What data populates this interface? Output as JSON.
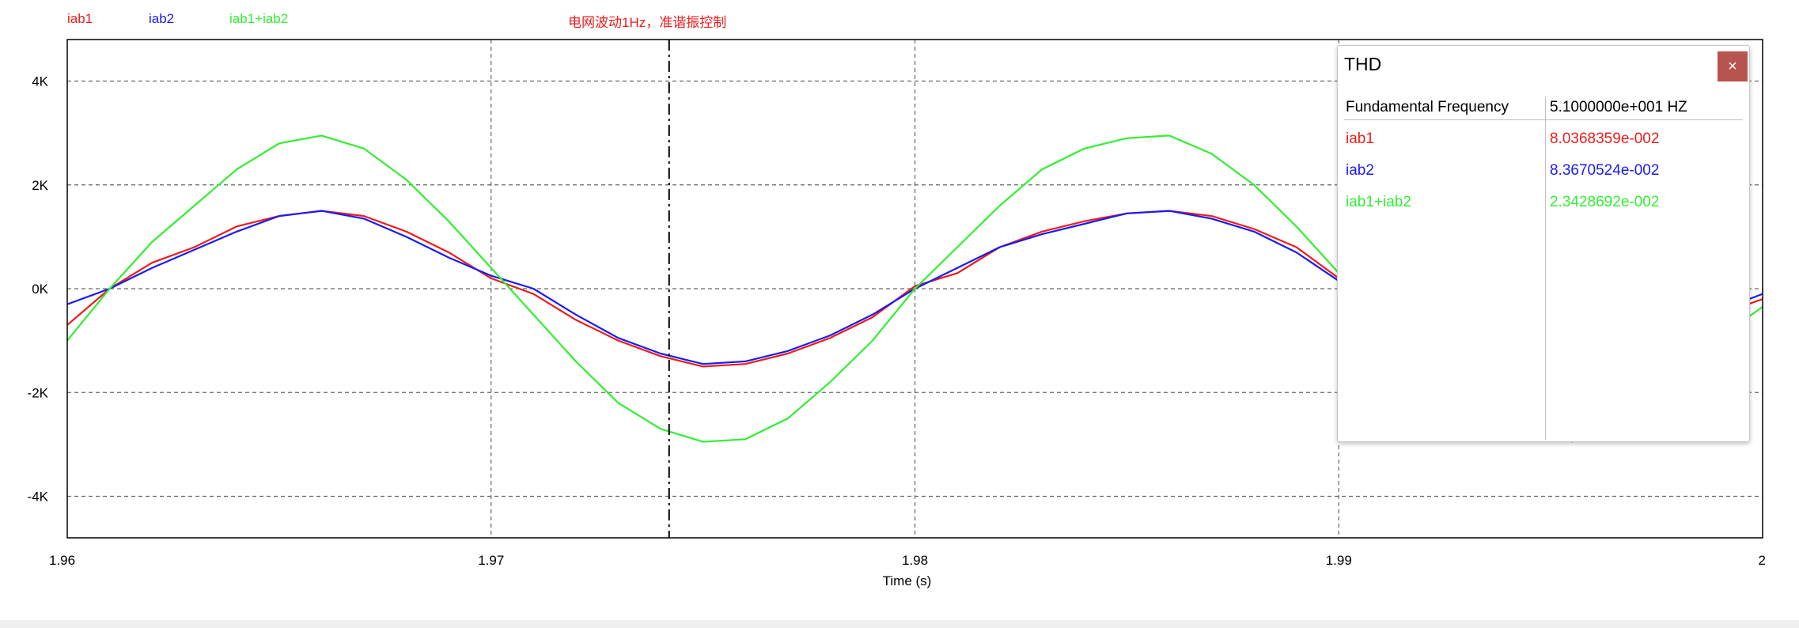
{
  "chart_data": {
    "type": "line",
    "title": "电网波动1Hz，准谐振控制",
    "xlabel": "Time (s)",
    "ylabel": "",
    "xlim": [
      1.96,
      2.0
    ],
    "ylim": [
      -4.8,
      4.8
    ],
    "x_ticks": [
      1.96,
      1.97,
      1.98,
      1.99,
      2.0
    ],
    "x_tick_labels": [
      "1.96",
      "1.97",
      "1.98",
      "1.99",
      "2"
    ],
    "y_ticks": [
      4,
      2,
      0,
      -2,
      -4
    ],
    "y_tick_labels": [
      "4K",
      "2K",
      "0K",
      "-2K",
      "-4K"
    ],
    "grid": true,
    "legend_position": "top-left",
    "cursor_x": 1.9742,
    "series": [
      {
        "name": "iab1",
        "color": "#ee1c1c",
        "x": [
          1.96,
          1.961,
          1.962,
          1.963,
          1.964,
          1.965,
          1.966,
          1.967,
          1.968,
          1.969,
          1.97,
          1.971,
          1.972,
          1.973,
          1.974,
          1.975,
          1.976,
          1.977,
          1.978,
          1.979,
          1.98,
          1.981,
          1.982,
          1.983,
          1.984,
          1.985,
          1.986,
          1.987,
          1.988,
          1.989,
          1.99,
          1.9955,
          2.0
        ],
        "y": [
          -0.7,
          0.0,
          0.5,
          0.8,
          1.2,
          1.4,
          1.5,
          1.4,
          1.1,
          0.7,
          0.2,
          -0.1,
          -0.6,
          -1.0,
          -1.3,
          -1.5,
          -1.45,
          -1.25,
          -0.95,
          -0.55,
          0.05,
          0.3,
          0.8,
          1.1,
          1.3,
          1.45,
          1.5,
          1.4,
          1.15,
          0.8,
          0.2,
          -1.5,
          -0.2
        ]
      },
      {
        "name": "iab2",
        "color": "#1c1cee",
        "x": [
          1.96,
          1.961,
          1.962,
          1.963,
          1.964,
          1.965,
          1.966,
          1.967,
          1.968,
          1.969,
          1.97,
          1.971,
          1.972,
          1.973,
          1.974,
          1.975,
          1.976,
          1.977,
          1.978,
          1.979,
          1.98,
          1.981,
          1.982,
          1.983,
          1.984,
          1.985,
          1.986,
          1.987,
          1.988,
          1.989,
          1.99,
          1.9955,
          2.0
        ],
        "y": [
          -0.3,
          0.0,
          0.4,
          0.75,
          1.1,
          1.4,
          1.5,
          1.35,
          1.0,
          0.6,
          0.25,
          0.0,
          -0.5,
          -0.95,
          -1.25,
          -1.45,
          -1.4,
          -1.2,
          -0.9,
          -0.5,
          0.0,
          0.4,
          0.8,
          1.05,
          1.25,
          1.45,
          1.5,
          1.35,
          1.1,
          0.7,
          0.15,
          -1.5,
          -0.1
        ]
      },
      {
        "name": "iab1+iab2",
        "color": "#33ee33",
        "x": [
          1.96,
          1.961,
          1.962,
          1.963,
          1.964,
          1.965,
          1.966,
          1.967,
          1.968,
          1.969,
          1.97,
          1.971,
          1.972,
          1.973,
          1.974,
          1.975,
          1.976,
          1.977,
          1.978,
          1.979,
          1.98,
          1.981,
          1.982,
          1.983,
          1.984,
          1.985,
          1.986,
          1.987,
          1.988,
          1.989,
          1.99,
          1.9955,
          2.0
        ],
        "y": [
          -1.0,
          0.0,
          0.9,
          1.6,
          2.3,
          2.8,
          2.95,
          2.7,
          2.1,
          1.3,
          0.4,
          -0.5,
          -1.4,
          -2.2,
          -2.7,
          -2.95,
          -2.9,
          -2.5,
          -1.8,
          -1.0,
          0.0,
          0.8,
          1.6,
          2.3,
          2.7,
          2.9,
          2.95,
          2.6,
          2.0,
          1.2,
          0.3,
          -2.95,
          -0.35
        ]
      }
    ]
  },
  "thd_panel": {
    "title": "THD",
    "close_glyph": "×",
    "header_label": "Fundamental Frequency",
    "header_value": "5.1000000e+001 HZ",
    "rows": [
      {
        "name": "iab1",
        "value": "8.0368359e-002",
        "color": "#ee1c1c"
      },
      {
        "name": "iab2",
        "value": "8.3670524e-002",
        "color": "#1c1cee"
      },
      {
        "name": "iab1+iab2",
        "value": "2.3428692e-002",
        "color": "#33ee33"
      }
    ]
  }
}
